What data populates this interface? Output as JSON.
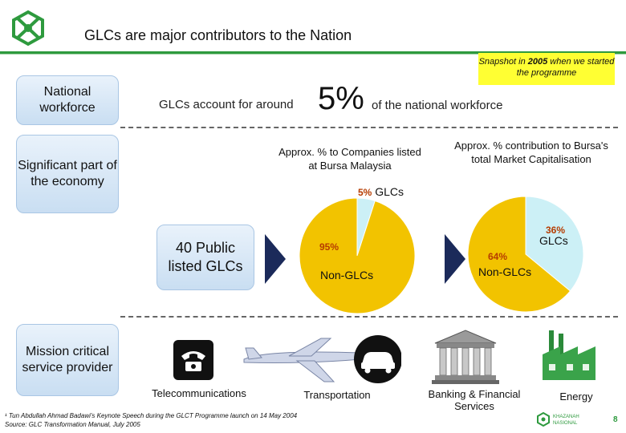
{
  "header": {
    "title": "GLCs are major contributors to the Nation",
    "snapshot_pre": "Snapshot in ",
    "snapshot_year": "2005",
    "snapshot_post": " when we started the programme"
  },
  "left_labels": [
    "National workforce",
    "Significant part of the economy",
    "Mission critical service provider"
  ],
  "workforce": {
    "prefix": "GLCs account for around",
    "value": "5%",
    "suffix": "of the national workforce"
  },
  "public_glcs": "40 Public listed GLCs",
  "chart_data": [
    {
      "type": "pie",
      "title": "Approx. % to Companies listed at Bursa Malaysia",
      "slices": [
        {
          "label": "GLCs",
          "value": 5,
          "value_label": "5%",
          "color": "#ccf0f6"
        },
        {
          "label": "Non-GLCs",
          "value": 95,
          "value_label": "95%",
          "color": "#f2c300"
        }
      ]
    },
    {
      "type": "pie",
      "title": "Approx. % contribution to Bursa's total Market Capitalisation",
      "slices": [
        {
          "label": "GLCs",
          "value": 36,
          "value_label": "36%",
          "color": "#ccf0f6"
        },
        {
          "label": "Non-GLCs",
          "value": 64,
          "value_label": "64%",
          "color": "#f2c300"
        }
      ]
    }
  ],
  "sectors": [
    {
      "label": "Telecommunications",
      "icon": "telephone-icon"
    },
    {
      "label": "Transportation",
      "icon": "airplane-car-icon"
    },
    {
      "label": "Banking & Financial Services",
      "icon": "bank-icon"
    },
    {
      "label": "Energy",
      "icon": "power-plant-icon"
    }
  ],
  "footnote": {
    "line1": "¹ Tun Abdullah Ahmad Badawi's Keynote Speech during the GLCT Programme launch on 14 May 2004",
    "line2": "Source: GLC Transformation Manual, July 2005"
  },
  "brand": "KHAZANAH NASIONAL",
  "page_number": "8",
  "colors": {
    "green": "#2e9a3e",
    "yellow": "#f2c300",
    "light_blue": "#ccf0f6",
    "navy": "#1b2a5a"
  }
}
